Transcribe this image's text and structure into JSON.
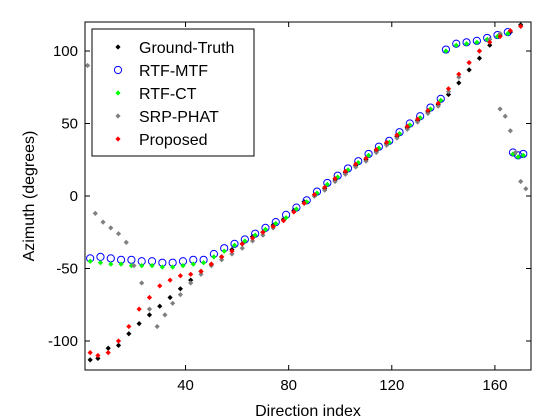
{
  "chart_data": {
    "type": "scatter",
    "xlabel": "Direction index",
    "ylabel": "Azimuth (degrees)",
    "xlim": [
      1,
      174
    ],
    "ylim": [
      -120,
      120
    ],
    "xticks": [
      40,
      80,
      120,
      160
    ],
    "yticks": [
      -100,
      -50,
      0,
      50,
      100
    ],
    "grid": false,
    "legend_position": "top-left",
    "series": [
      {
        "name": "Ground-Truth",
        "marker": "dot",
        "color": "#000000",
        "points": [
          [
            3,
            -113
          ],
          [
            6,
            -112
          ],
          [
            10,
            -105
          ],
          [
            14,
            -103
          ],
          [
            18,
            -95
          ],
          [
            22,
            -88
          ],
          [
            26,
            -82
          ],
          [
            30,
            -76
          ],
          [
            34,
            -70
          ],
          [
            38,
            -64
          ],
          [
            42,
            -58
          ],
          [
            46,
            -52
          ],
          [
            50,
            -47
          ],
          [
            54,
            -42
          ],
          [
            58,
            -37
          ],
          [
            62,
            -33
          ],
          [
            66,
            -28
          ],
          [
            70,
            -25
          ],
          [
            74,
            -20
          ],
          [
            78,
            -16
          ],
          [
            82,
            -10
          ],
          [
            86,
            -4
          ],
          [
            90,
            0
          ],
          [
            94,
            5
          ],
          [
            98,
            11
          ],
          [
            102,
            16
          ],
          [
            106,
            21
          ],
          [
            110,
            25
          ],
          [
            114,
            31
          ],
          [
            118,
            36
          ],
          [
            122,
            41
          ],
          [
            126,
            47
          ],
          [
            130,
            52
          ],
          [
            134,
            58
          ],
          [
            138,
            63
          ],
          [
            142,
            70
          ],
          [
            146,
            78
          ],
          [
            150,
            87
          ],
          [
            154,
            95
          ],
          [
            158,
            104
          ],
          [
            162,
            111
          ],
          [
            166,
            113
          ],
          [
            170,
            118
          ]
        ]
      },
      {
        "name": "RTF-MTF",
        "marker": "circle",
        "color": "#0000ff",
        "points": [
          [
            3,
            -43
          ],
          [
            7,
            -42
          ],
          [
            11,
            -43
          ],
          [
            15,
            -44
          ],
          [
            19,
            -44
          ],
          [
            23,
            -45
          ],
          [
            27,
            -45
          ],
          [
            31,
            -46
          ],
          [
            35,
            -46
          ],
          [
            39,
            -45
          ],
          [
            43,
            -44
          ],
          [
            47,
            -44
          ],
          [
            51,
            -40
          ],
          [
            55,
            -36
          ],
          [
            59,
            -33
          ],
          [
            63,
            -30
          ],
          [
            67,
            -26
          ],
          [
            71,
            -22
          ],
          [
            75,
            -18
          ],
          [
            79,
            -13
          ],
          [
            83,
            -8
          ],
          [
            87,
            -3
          ],
          [
            91,
            3
          ],
          [
            95,
            9
          ],
          [
            99,
            14
          ],
          [
            103,
            19
          ],
          [
            107,
            24
          ],
          [
            111,
            29
          ],
          [
            115,
            34
          ],
          [
            119,
            38
          ],
          [
            123,
            44
          ],
          [
            127,
            50
          ],
          [
            131,
            55
          ],
          [
            135,
            61
          ],
          [
            139,
            67
          ],
          [
            141,
            101
          ],
          [
            145,
            105
          ],
          [
            149,
            106
          ],
          [
            153,
            107
          ],
          [
            157,
            109
          ],
          [
            161,
            111
          ],
          [
            165,
            113
          ],
          [
            167,
            30
          ],
          [
            169,
            28
          ],
          [
            171,
            29
          ]
        ]
      },
      {
        "name": "RTF-CT",
        "marker": "dot",
        "color": "#00ff00",
        "points": [
          [
            3,
            -45
          ],
          [
            7,
            -46
          ],
          [
            11,
            -47
          ],
          [
            15,
            -47
          ],
          [
            19,
            -48
          ],
          [
            23,
            -48
          ],
          [
            27,
            -48
          ],
          [
            31,
            -49
          ],
          [
            35,
            -49
          ],
          [
            39,
            -48
          ],
          [
            43,
            -47
          ],
          [
            47,
            -46
          ],
          [
            51,
            -42
          ],
          [
            55,
            -38
          ],
          [
            59,
            -34
          ],
          [
            63,
            -31
          ],
          [
            67,
            -27
          ],
          [
            71,
            -23
          ],
          [
            75,
            -19
          ],
          [
            79,
            -15
          ],
          [
            83,
            -9
          ],
          [
            87,
            -4
          ],
          [
            91,
            2
          ],
          [
            95,
            8
          ],
          [
            99,
            13
          ],
          [
            103,
            18
          ],
          [
            107,
            23
          ],
          [
            111,
            28
          ],
          [
            115,
            33
          ],
          [
            119,
            37
          ],
          [
            123,
            43
          ],
          [
            127,
            49
          ],
          [
            131,
            54
          ],
          [
            135,
            60
          ],
          [
            139,
            66
          ],
          [
            141,
            100
          ],
          [
            145,
            104
          ],
          [
            149,
            105
          ],
          [
            153,
            106
          ],
          [
            157,
            108
          ],
          [
            161,
            110
          ],
          [
            165,
            112
          ],
          [
            167,
            29
          ],
          [
            169,
            27
          ],
          [
            171,
            28
          ]
        ]
      },
      {
        "name": "SRP-PHAT",
        "marker": "dot",
        "color": "#808080",
        "points": [
          [
            2,
            90
          ],
          [
            5,
            -12
          ],
          [
            8,
            -18
          ],
          [
            11,
            -22
          ],
          [
            14,
            -26
          ],
          [
            17,
            -32
          ],
          [
            20,
            -48
          ],
          [
            23,
            -60
          ],
          [
            26,
            -78
          ],
          [
            29,
            -90
          ],
          [
            32,
            -82
          ],
          [
            35,
            -74
          ],
          [
            38,
            -68
          ],
          [
            42,
            -60
          ],
          [
            46,
            -54
          ],
          [
            50,
            -48
          ],
          [
            54,
            -44
          ],
          [
            58,
            -40
          ],
          [
            62,
            -36
          ],
          [
            66,
            -31
          ],
          [
            70,
            -27
          ],
          [
            74,
            -22
          ],
          [
            78,
            -17
          ],
          [
            82,
            -11
          ],
          [
            86,
            -5
          ],
          [
            90,
            0
          ],
          [
            94,
            4
          ],
          [
            98,
            10
          ],
          [
            102,
            15
          ],
          [
            106,
            20
          ],
          [
            110,
            24
          ],
          [
            114,
            30
          ],
          [
            118,
            35
          ],
          [
            122,
            40
          ],
          [
            126,
            46
          ],
          [
            130,
            51
          ],
          [
            134,
            57
          ],
          [
            138,
            62
          ],
          [
            142,
            72
          ],
          [
            146,
            82
          ],
          [
            150,
            92
          ],
          [
            154,
            100
          ],
          [
            158,
            108
          ],
          [
            162,
            112
          ],
          [
            162,
            60
          ],
          [
            164,
            55
          ],
          [
            166,
            45
          ],
          [
            168,
            30
          ],
          [
            170,
            10
          ],
          [
            172,
            5
          ]
        ]
      },
      {
        "name": "Proposed",
        "marker": "dot",
        "color": "#ff0000",
        "points": [
          [
            3,
            -108
          ],
          [
            6,
            -110
          ],
          [
            10,
            -108
          ],
          [
            14,
            -100
          ],
          [
            18,
            -90
          ],
          [
            22,
            -78
          ],
          [
            26,
            -70
          ],
          [
            30,
            -62
          ],
          [
            34,
            -58
          ],
          [
            38,
            -55
          ],
          [
            42,
            -54
          ],
          [
            46,
            -52
          ],
          [
            50,
            -47
          ],
          [
            54,
            -42
          ],
          [
            58,
            -38
          ],
          [
            62,
            -33
          ],
          [
            66,
            -29
          ],
          [
            70,
            -25
          ],
          [
            74,
            -21
          ],
          [
            78,
            -17
          ],
          [
            82,
            -11
          ],
          [
            86,
            -5
          ],
          [
            90,
            1
          ],
          [
            94,
            6
          ],
          [
            98,
            12
          ],
          [
            102,
            17
          ],
          [
            106,
            22
          ],
          [
            110,
            26
          ],
          [
            114,
            32
          ],
          [
            118,
            37
          ],
          [
            122,
            42
          ],
          [
            126,
            48
          ],
          [
            130,
            53
          ],
          [
            134,
            59
          ],
          [
            138,
            64
          ],
          [
            142,
            74
          ],
          [
            146,
            84
          ],
          [
            150,
            92
          ],
          [
            154,
            100
          ],
          [
            158,
            106
          ],
          [
            162,
            110
          ],
          [
            166,
            114
          ],
          [
            170,
            117
          ]
        ]
      }
    ]
  }
}
